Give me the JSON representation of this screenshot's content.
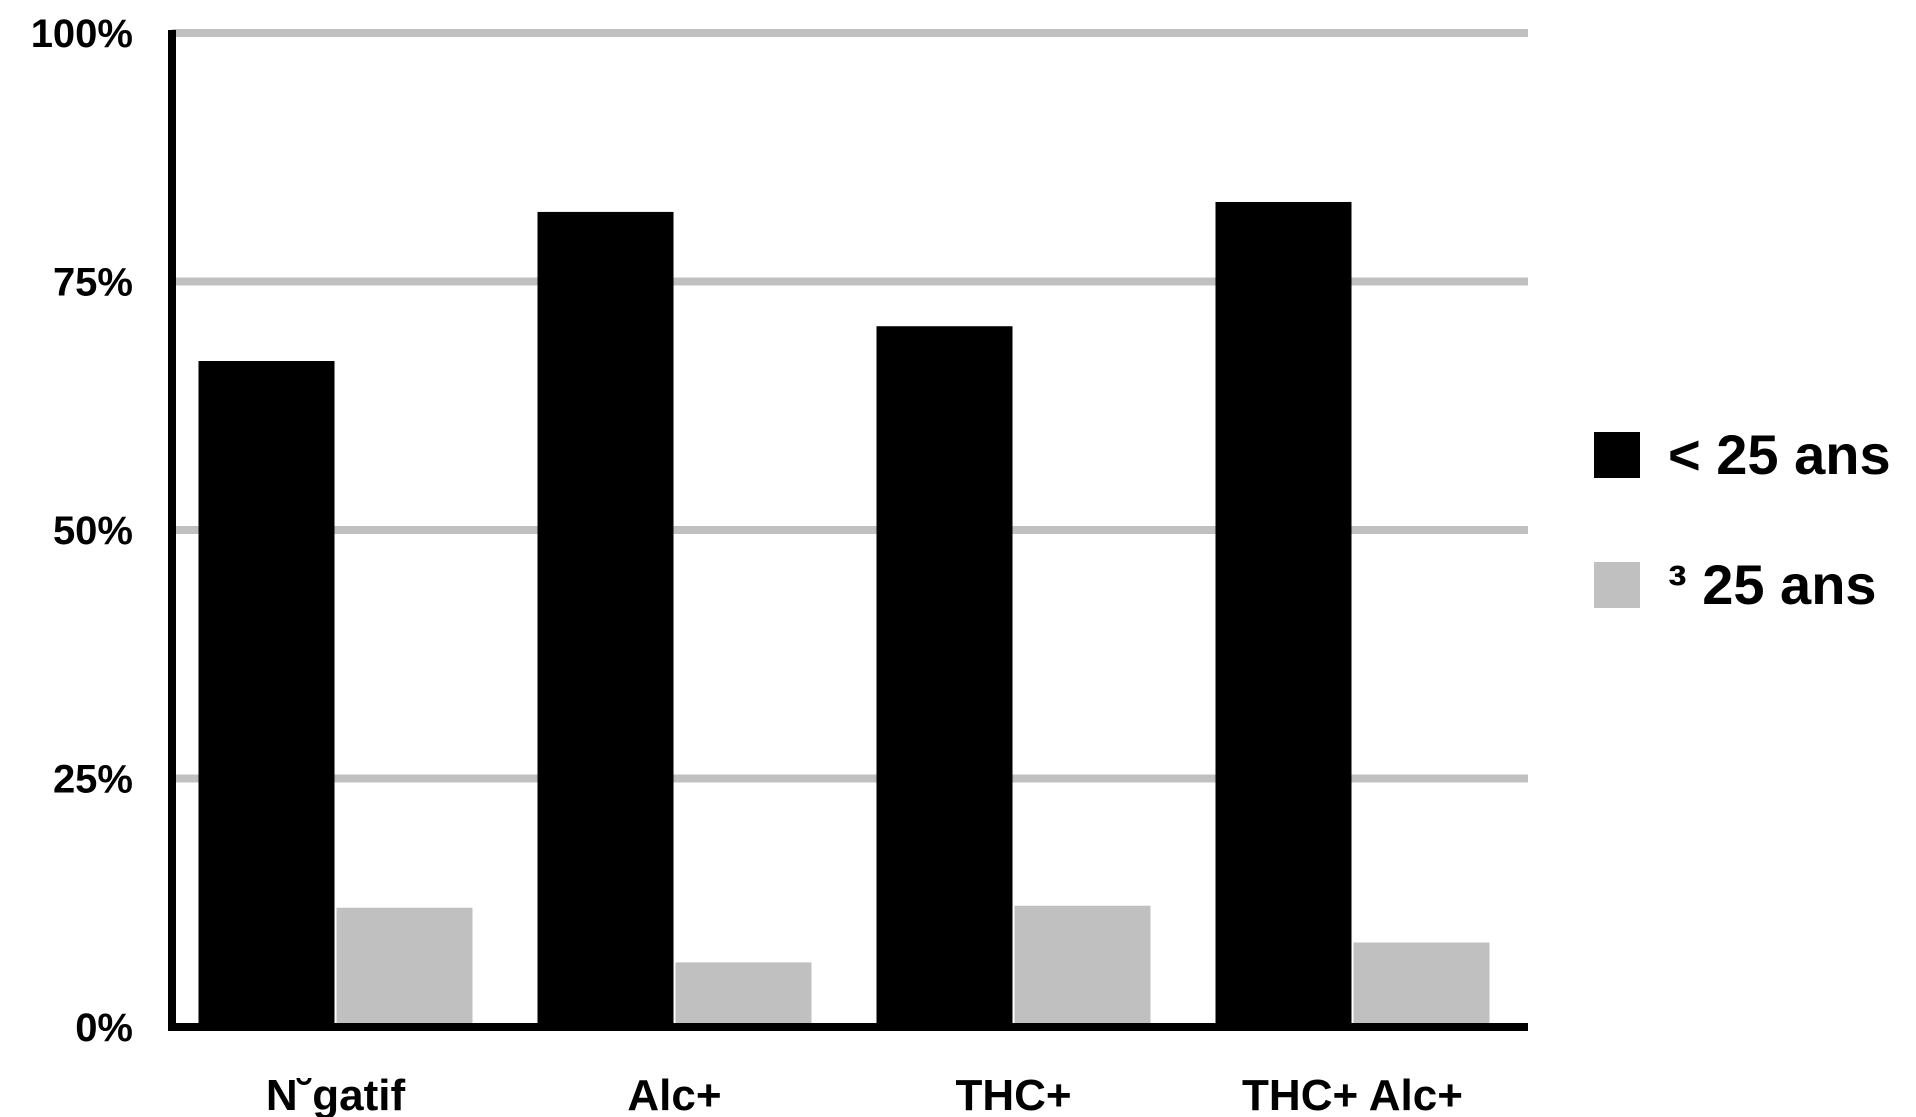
{
  "chart_data": {
    "type": "bar",
    "categories": [
      "N˘gatif",
      "Alc+",
      "THC+",
      "THC+ Alc+"
    ],
    "series": [
      {
        "name": "< 25 ans",
        "values": [
          67,
          82,
          70.5,
          83
        ],
        "color": "#000000"
      },
      {
        "name": "³ 25 ans",
        "values": [
          12,
          6.5,
          12.2,
          8.5
        ],
        "color": "#c0c0c0"
      }
    ],
    "y_ticks": [
      0,
      25,
      50,
      75,
      100
    ],
    "y_tick_labels": [
      "0%",
      "25%",
      "50%",
      "75%",
      "100%"
    ],
    "ylim": [
      0,
      100
    ],
    "title": "",
    "xlabel": "",
    "ylabel": "",
    "grid": true,
    "grid_color": "#c0c0c0",
    "legend_position": "right"
  }
}
